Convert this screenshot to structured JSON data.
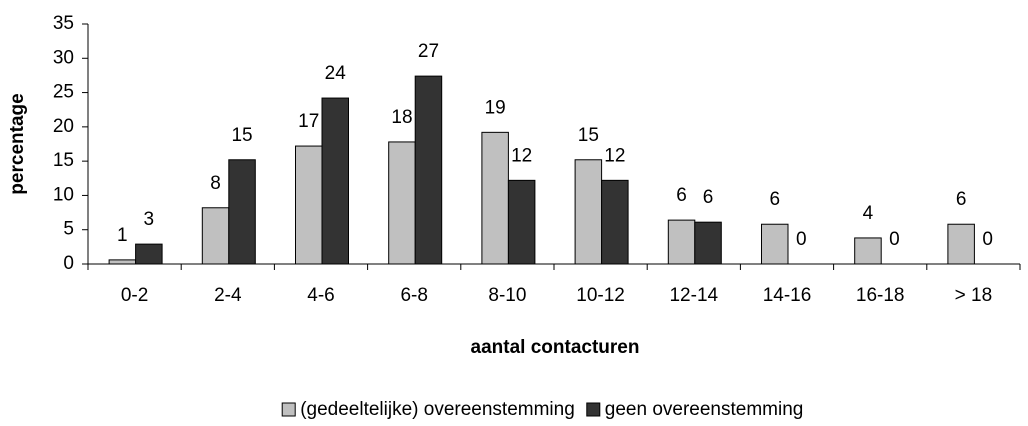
{
  "chart_data": {
    "type": "bar",
    "xlabel": "aantal contacturen",
    "ylabel": "percentage",
    "categories": [
      "0-2",
      "2-4",
      "4-6",
      "6-8",
      "8-10",
      "10-12",
      "12-14",
      "14-16",
      "16-18",
      "> 18"
    ],
    "series": [
      {
        "name": "(gedeeltelijke) overeenstemming",
        "color": "#c0c0c0",
        "values": [
          0.6,
          8.2,
          17.2,
          17.8,
          19.2,
          15.2,
          6.4,
          5.8,
          3.8,
          5.8
        ],
        "value_labels": [
          "1",
          "8",
          "17",
          "18",
          "19",
          "15",
          "6",
          "6",
          "4",
          "6"
        ]
      },
      {
        "name": "geen overeenstemming",
        "color": "#333333",
        "values": [
          2.9,
          15.2,
          24.2,
          27.4,
          12.2,
          12.2,
          6.1,
          0,
          0,
          0
        ],
        "value_labels": [
          "3",
          "15",
          "24",
          "27",
          "12",
          "12",
          "6",
          "0",
          "0",
          "0"
        ]
      }
    ],
    "ylim": [
      0,
      35
    ],
    "yticks": [
      0,
      5,
      10,
      15,
      20,
      25,
      30,
      35
    ],
    "legend": "bottom"
  }
}
